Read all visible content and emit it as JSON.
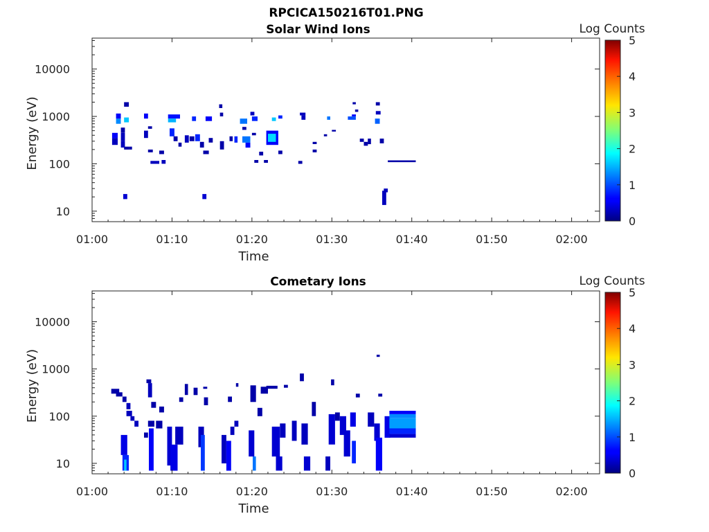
{
  "figure": {
    "title": "RPCICA150216T01.PNG"
  },
  "chart_data": [
    {
      "type": "heatmap",
      "title": "Solar Wind Ions",
      "xlabel": "Time",
      "ylabel": "Energy (eV)",
      "yscale": "log",
      "x_ticks": [
        "01:00",
        "01:10",
        "01:20",
        "01:30",
        "01:40",
        "01:50",
        "02:00"
      ],
      "x_range_min": [
        0,
        63.5
      ],
      "y_ticks": [
        10,
        100,
        1000,
        10000
      ],
      "y_tick_labels": [
        "10",
        "100",
        "1000",
        "10000"
      ],
      "ylim": [
        6,
        45000
      ],
      "colorbar": {
        "label": "Log Counts",
        "range": [
          0,
          5
        ],
        "ticks": [
          "0",
          "1",
          "2",
          "3",
          "4",
          "5"
        ],
        "colormap": "jet"
      },
      "cells": [
        [
          2.5,
          3.2,
          250,
          350,
          0.3
        ],
        [
          2.5,
          3.2,
          350,
          450,
          0.6
        ],
        [
          3.0,
          3.6,
          700,
          900,
          1.3
        ],
        [
          3.0,
          3.6,
          900,
          1150,
          0.6
        ],
        [
          3.6,
          4.1,
          300,
          450,
          0.3
        ],
        [
          3.6,
          4.1,
          220,
          300,
          0.3
        ],
        [
          3.6,
          4.1,
          450,
          580,
          0.2
        ],
        [
          4.0,
          4.6,
          1600,
          2000,
          0.2
        ],
        [
          4.0,
          4.6,
          750,
          950,
          1.6
        ],
        [
          4.0,
          4.6,
          200,
          230,
          0.2
        ],
        [
          4.6,
          5.0,
          200,
          230,
          0.2
        ],
        [
          3.9,
          4.4,
          18,
          23,
          0.4
        ],
        [
          6.5,
          7.0,
          350,
          500,
          0.3
        ],
        [
          6.5,
          7.0,
          900,
          1150,
          0.6
        ],
        [
          7.0,
          7.5,
          550,
          620,
          0.2
        ],
        [
          7.0,
          7.6,
          175,
          200,
          0.2
        ],
        [
          7.3,
          8.4,
          100,
          115,
          0.3
        ],
        [
          8.4,
          9.0,
          160,
          190,
          0.2
        ],
        [
          8.7,
          9.2,
          100,
          120,
          0.3
        ],
        [
          9.5,
          11.0,
          900,
          1100,
          0.7
        ],
        [
          9.5,
          10.5,
          750,
          900,
          1.5
        ],
        [
          9.7,
          10.3,
          380,
          560,
          0.8
        ],
        [
          10.2,
          10.7,
          300,
          380,
          0.2
        ],
        [
          10.8,
          11.2,
          230,
          280,
          0.2
        ],
        [
          11.6,
          12.1,
          280,
          400,
          0.3
        ],
        [
          12.5,
          13.0,
          800,
          1000,
          0.8
        ],
        [
          12.2,
          12.8,
          300,
          380,
          0.2
        ],
        [
          12.9,
          13.5,
          300,
          420,
          0.8
        ],
        [
          13.5,
          14.0,
          220,
          290,
          0.2
        ],
        [
          13.8,
          14.3,
          18,
          23,
          0.4
        ],
        [
          13.9,
          14.6,
          160,
          190,
          0.2
        ],
        [
          14.2,
          15.0,
          800,
          1000,
          0.6
        ],
        [
          14.6,
          15.1,
          280,
          350,
          0.2
        ],
        [
          15.9,
          16.3,
          1500,
          1800,
          0.2
        ],
        [
          16.0,
          16.4,
          1000,
          1200,
          0.2
        ],
        [
          16.0,
          16.5,
          200,
          300,
          0.2
        ],
        [
          17.2,
          17.6,
          300,
          380,
          0.2
        ],
        [
          17.8,
          18.2,
          280,
          380,
          0.8
        ],
        [
          18.5,
          19.4,
          700,
          900,
          1.2
        ],
        [
          18.8,
          19.3,
          520,
          600,
          0.2
        ],
        [
          18.8,
          19.8,
          280,
          380,
          1.2
        ],
        [
          19.2,
          19.8,
          220,
          280,
          0.6
        ],
        [
          19.8,
          20.3,
          1050,
          1250,
          0.3
        ],
        [
          20.0,
          20.7,
          800,
          1000,
          0.8
        ],
        [
          20.0,
          20.5,
          400,
          450,
          0.2
        ],
        [
          20.3,
          20.8,
          105,
          120,
          0.2
        ],
        [
          20.9,
          21.4,
          150,
          180,
          0.2
        ],
        [
          21.5,
          22.0,
          105,
          120,
          0.2
        ],
        [
          21.8,
          23.3,
          250,
          500,
          0.6
        ],
        [
          22.0,
          23.0,
          290,
          430,
          1.7
        ],
        [
          22.5,
          23.0,
          800,
          950,
          1.6
        ],
        [
          23.3,
          23.8,
          900,
          1050,
          0.8
        ],
        [
          23.3,
          23.8,
          160,
          190,
          0.2
        ],
        [
          25.8,
          26.3,
          100,
          115,
          0.2
        ],
        [
          26.2,
          26.7,
          850,
          1050,
          0.3
        ],
        [
          26.0,
          26.7,
          1050,
          1200,
          0.3
        ],
        [
          27.6,
          28.1,
          175,
          200,
          0.2
        ],
        [
          27.6,
          28.1,
          260,
          290,
          0.2
        ],
        [
          29.4,
          29.8,
          850,
          1000,
          1.2
        ],
        [
          29.0,
          29.4,
          380,
          420,
          0.2
        ],
        [
          30.0,
          30.5,
          480,
          520,
          0.2
        ],
        [
          32.0,
          33.0,
          850,
          1000,
          1.0
        ],
        [
          32.5,
          33.0,
          1000,
          1100,
          0.6
        ],
        [
          32.6,
          33.0,
          1800,
          2000,
          0.2
        ],
        [
          32.9,
          33.3,
          1250,
          1400,
          0.2
        ],
        [
          33.5,
          34.0,
          290,
          340,
          0.2
        ],
        [
          34.0,
          34.5,
          240,
          290,
          0.2
        ],
        [
          34.5,
          34.9,
          260,
          340,
          0.2
        ],
        [
          35.5,
          36.0,
          1700,
          2000,
          0.2
        ],
        [
          35.5,
          36.1,
          1100,
          1300,
          0.3
        ],
        [
          35.4,
          36.0,
          700,
          900,
          1.1
        ],
        [
          36.0,
          36.5,
          270,
          340,
          0.2
        ],
        [
          36.3,
          36.8,
          13.5,
          27,
          0.3
        ],
        [
          36.5,
          37.0,
          25,
          30,
          0.3
        ],
        [
          37.0,
          40.5,
          108,
          118,
          0.2
        ]
      ]
    },
    {
      "type": "heatmap",
      "title": "Cometary Ions",
      "xlabel": "Time",
      "ylabel": "Energy (eV)",
      "yscale": "log",
      "x_ticks": [
        "01:00",
        "01:10",
        "01:20",
        "01:30",
        "01:40",
        "01:50",
        "02:00"
      ],
      "x_range_min": [
        0,
        63.5
      ],
      "y_ticks": [
        10,
        100,
        1000,
        10000
      ],
      "y_tick_labels": [
        "10",
        "100",
        "1000",
        "10000"
      ],
      "ylim": [
        6,
        45000
      ],
      "colorbar": {
        "label": "Log Counts",
        "range": [
          0,
          5
        ],
        "ticks": [
          "0",
          "1",
          "2",
          "3",
          "4",
          "5"
        ],
        "colormap": "jet"
      },
      "cells": [
        [
          2.4,
          3.4,
          300,
          380,
          0.2
        ],
        [
          3.0,
          3.8,
          260,
          320,
          0.2
        ],
        [
          3.8,
          4.3,
          200,
          260,
          0.2
        ],
        [
          4.3,
          4.8,
          140,
          190,
          0.3
        ],
        [
          4.3,
          5.0,
          100,
          130,
          0.3
        ],
        [
          4.8,
          5.3,
          80,
          100,
          0.3
        ],
        [
          5.3,
          5.8,
          60,
          80,
          0.3
        ],
        [
          3.6,
          4.4,
          15,
          40,
          0.5
        ],
        [
          3.8,
          4.6,
          7,
          15,
          0.8
        ],
        [
          4.0,
          4.3,
          7,
          12,
          1.6
        ],
        [
          6.8,
          7.4,
          500,
          600,
          0.2
        ],
        [
          7.0,
          7.5,
          250,
          500,
          0.3
        ],
        [
          7.4,
          8.0,
          150,
          200,
          0.2
        ],
        [
          7.0,
          7.8,
          60,
          80,
          0.2
        ],
        [
          6.5,
          7.0,
          35,
          45,
          0.2
        ],
        [
          7.1,
          7.7,
          7,
          55,
          0.6
        ],
        [
          8.0,
          8.8,
          55,
          80,
          0.2
        ],
        [
          8.4,
          9.0,
          120,
          160,
          0.2
        ],
        [
          9.4,
          10.0,
          9,
          60,
          0.4
        ],
        [
          9.8,
          10.7,
          7,
          25,
          0.5
        ],
        [
          10.4,
          11.4,
          25,
          60,
          0.3
        ],
        [
          10.9,
          11.4,
          200,
          250,
          0.2
        ],
        [
          11.6,
          12.0,
          280,
          480,
          0.2
        ],
        [
          12.7,
          13.2,
          280,
          400,
          0.2
        ],
        [
          13.3,
          14.0,
          22,
          60,
          0.3
        ],
        [
          13.6,
          14.1,
          7,
          40,
          0.9
        ],
        [
          14.0,
          14.5,
          170,
          250,
          0.2
        ],
        [
          13.9,
          14.4,
          380,
          420,
          0.2
        ],
        [
          16.2,
          16.8,
          10,
          40,
          0.3
        ],
        [
          16.8,
          17.4,
          7,
          30,
          0.6
        ],
        [
          17.3,
          17.8,
          40,
          60,
          0.3
        ],
        [
          17.0,
          17.5,
          200,
          260,
          0.2
        ],
        [
          17.8,
          18.3,
          60,
          80,
          0.3
        ],
        [
          18.0,
          18.3,
          420,
          500,
          0.2
        ],
        [
          19.6,
          20.3,
          14,
          50,
          0.4
        ],
        [
          20.1,
          20.5,
          7,
          14,
          1.2
        ],
        [
          19.8,
          20.5,
          200,
          450,
          0.2
        ],
        [
          20.7,
          21.3,
          100,
          150,
          0.2
        ],
        [
          21.1,
          22.0,
          300,
          420,
          0.2
        ],
        [
          21.8,
          23.2,
          380,
          440,
          0.2
        ],
        [
          22.5,
          23.5,
          14,
          60,
          0.4
        ],
        [
          23.0,
          23.8,
          7,
          14,
          0.4
        ],
        [
          23.5,
          24.2,
          35,
          70,
          0.3
        ],
        [
          24.0,
          24.5,
          400,
          460,
          0.2
        ],
        [
          25.0,
          25.6,
          30,
          80,
          0.3
        ],
        [
          26.0,
          26.5,
          550,
          800,
          0.2
        ],
        [
          26.2,
          27.0,
          25,
          70,
          0.3
        ],
        [
          26.5,
          27.3,
          7,
          14,
          0.4
        ],
        [
          27.5,
          28.0,
          100,
          200,
          0.2
        ],
        [
          29.2,
          29.8,
          7,
          14,
          0.3
        ],
        [
          29.6,
          30.4,
          25,
          110,
          0.4
        ],
        [
          30.4,
          31.0,
          80,
          120,
          0.2
        ],
        [
          29.9,
          30.3,
          450,
          600,
          0.2
        ],
        [
          31.0,
          31.8,
          40,
          100,
          0.4
        ],
        [
          31.5,
          32.3,
          14,
          50,
          0.4
        ],
        [
          32.3,
          33.0,
          60,
          120,
          0.5
        ],
        [
          32.5,
          33.0,
          10,
          30,
          0.8
        ],
        [
          33.0,
          33.5,
          250,
          300,
          0.2
        ],
        [
          34.5,
          35.3,
          60,
          120,
          0.3
        ],
        [
          35.3,
          36.0,
          30,
          70,
          0.4
        ],
        [
          35.5,
          36.3,
          7,
          35,
          0.6
        ],
        [
          35.6,
          36.0,
          1800,
          2000,
          0.2
        ],
        [
          35.8,
          36.3,
          260,
          300,
          0.2
        ],
        [
          36.6,
          37.3,
          35,
          100,
          0.5
        ],
        [
          37.2,
          40.5,
          110,
          130,
          0.6
        ],
        [
          37.2,
          40.5,
          90,
          110,
          1.3
        ],
        [
          37.2,
          40.5,
          55,
          90,
          1.4
        ],
        [
          37.2,
          40.5,
          42,
          55,
          0.8
        ],
        [
          37.2,
          40.5,
          35,
          42,
          0.4
        ]
      ]
    }
  ]
}
